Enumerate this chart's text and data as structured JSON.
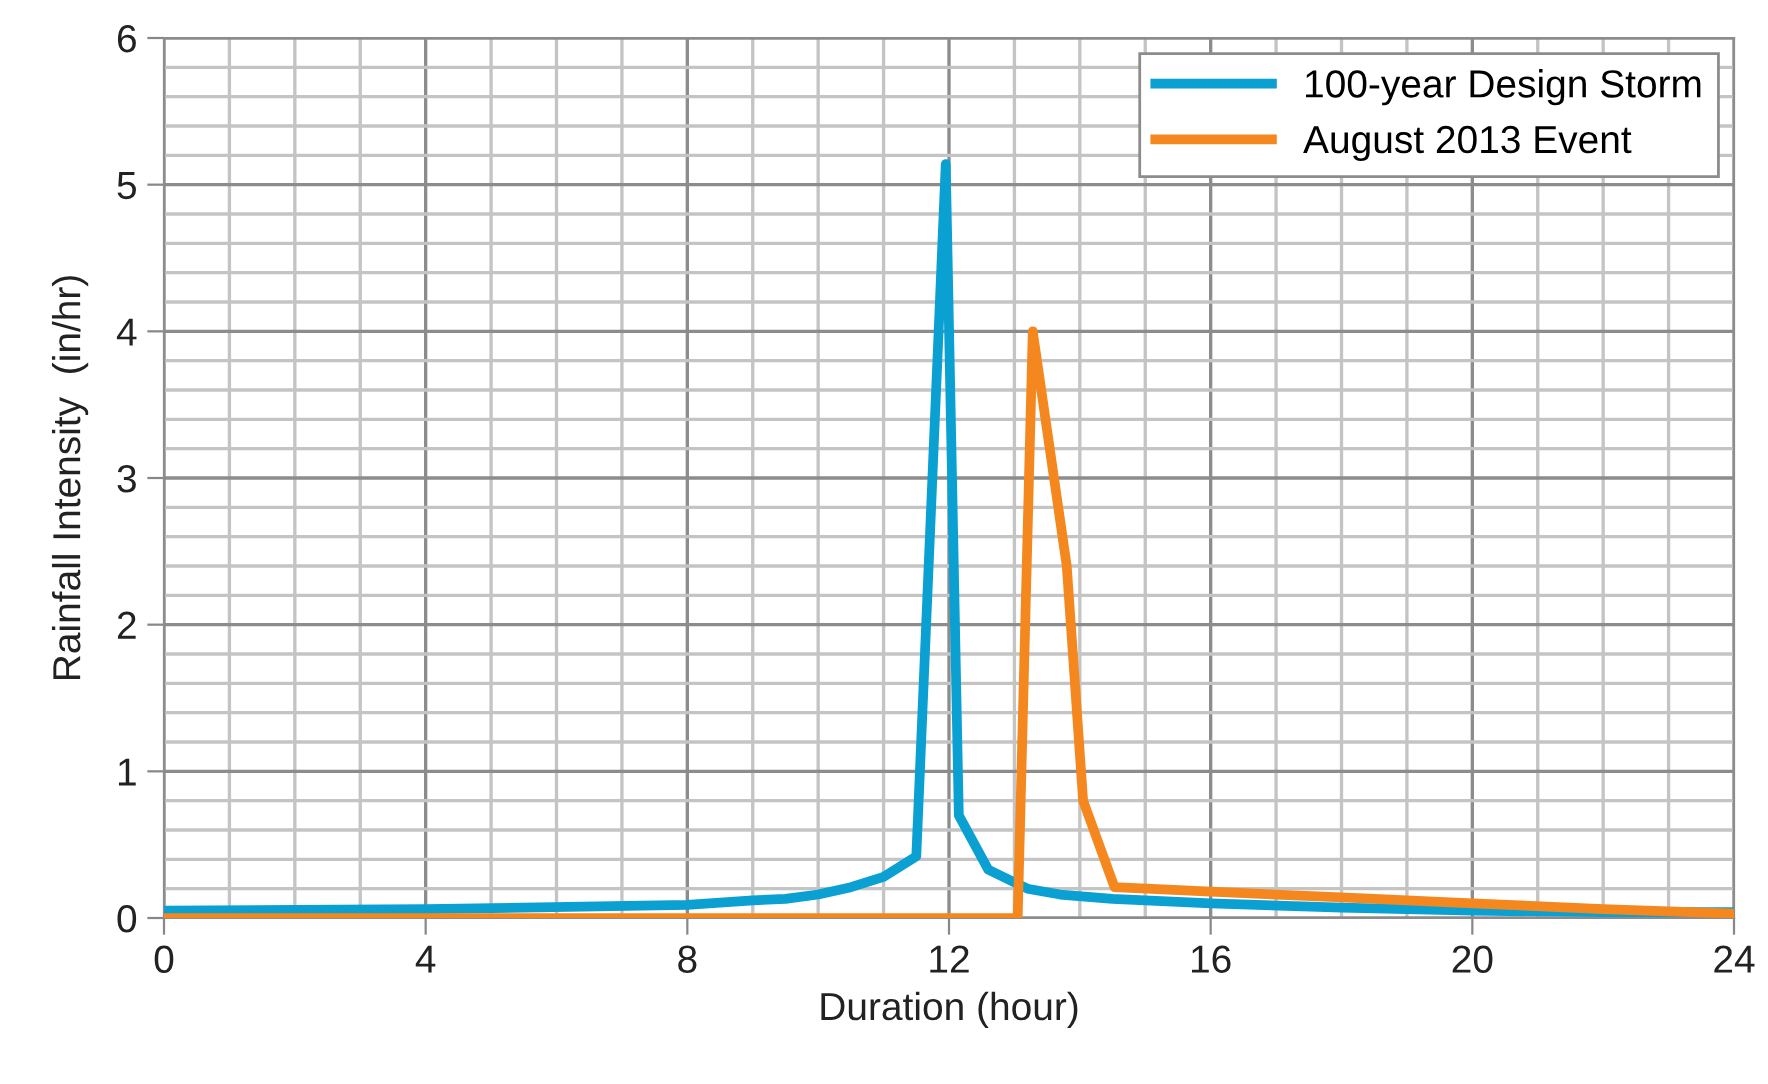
{
  "chart_data": {
    "type": "line",
    "xlabel": "Duration (hour)",
    "ylabel": "Rainfall Intensity  (in/hr)",
    "xlim": [
      0,
      24
    ],
    "ylim": [
      0,
      6
    ],
    "xticks": [
      0,
      {
        "value": 1,
        "label": null
      },
      {
        "value": 2,
        "label": null
      },
      {
        "value": 3,
        "label": null
      },
      4,
      {
        "value": 5,
        "label": null
      },
      {
        "value": 6,
        "label": null
      },
      {
        "value": 7,
        "label": null
      },
      8,
      {
        "value": 9,
        "label": null
      },
      {
        "value": 10,
        "label": null
      },
      {
        "value": 11,
        "label": null
      },
      12,
      {
        "value": 13,
        "label": null
      },
      {
        "value": 14,
        "label": null
      },
      {
        "value": 15,
        "label": null
      },
      16,
      {
        "value": 17,
        "label": null
      },
      {
        "value": 18,
        "label": null
      },
      {
        "value": 19,
        "label": null
      },
      20,
      {
        "value": 21,
        "label": null
      },
      {
        "value": 22,
        "label": null
      },
      {
        "value": 23,
        "label": null
      },
      24
    ],
    "yticks": [
      0,
      {
        "value": 0.2,
        "label": null
      },
      {
        "value": 0.4,
        "label": null
      },
      {
        "value": 0.6,
        "label": null
      },
      {
        "value": 0.8,
        "label": null
      },
      1,
      {
        "value": 1.2,
        "label": null
      },
      {
        "value": 1.4,
        "label": null
      },
      {
        "value": 1.6,
        "label": null
      },
      {
        "value": 1.8,
        "label": null
      },
      2,
      {
        "value": 2.2,
        "label": null
      },
      {
        "value": 2.4,
        "label": null
      },
      {
        "value": 2.6,
        "label": null
      },
      {
        "value": 2.8,
        "label": null
      },
      3,
      {
        "value": 3.2,
        "label": null
      },
      {
        "value": 3.4,
        "label": null
      },
      {
        "value": 3.6,
        "label": null
      },
      {
        "value": 3.8,
        "label": null
      },
      4,
      {
        "value": 4.2,
        "label": null
      },
      {
        "value": 4.4,
        "label": null
      },
      {
        "value": 4.6,
        "label": null
      },
      {
        "value": 4.8,
        "label": null
      },
      5,
      {
        "value": 5.2,
        "label": null
      },
      {
        "value": 5.4,
        "label": null
      },
      {
        "value": 5.6,
        "label": null
      },
      {
        "value": 5.8,
        "label": null
      },
      6
    ],
    "grid": true,
    "legend": "top right",
    "marker": "none",
    "line_style": "solid",
    "series": [
      {
        "name": "100-year Design Storm",
        "color": "#0ba0d2",
        "x": [
          0,
          4,
          8,
          9,
          9.5,
          10,
          10.5,
          11,
          11.5,
          11.95,
          12.15,
          12.6,
          13.2,
          13.7,
          14.5,
          16,
          18,
          20,
          22,
          24
        ],
        "values": [
          0.05,
          0.06,
          0.09,
          0.12,
          0.13,
          0.16,
          0.21,
          0.28,
          0.42,
          5.14,
          0.7,
          0.33,
          0.2,
          0.16,
          0.13,
          0.1,
          0.07,
          0.05,
          0.04,
          0.04
        ]
      },
      {
        "name": "August 2013 Event",
        "color": "#f5871f",
        "x": [
          0,
          13.05,
          13.28,
          13.8,
          14.05,
          14.53,
          16,
          18,
          20,
          22,
          24
        ],
        "values": [
          0,
          0,
          4.0,
          2.4,
          0.8,
          0.21,
          0.18,
          0.14,
          0.1,
          0.06,
          0.03
        ]
      }
    ]
  }
}
